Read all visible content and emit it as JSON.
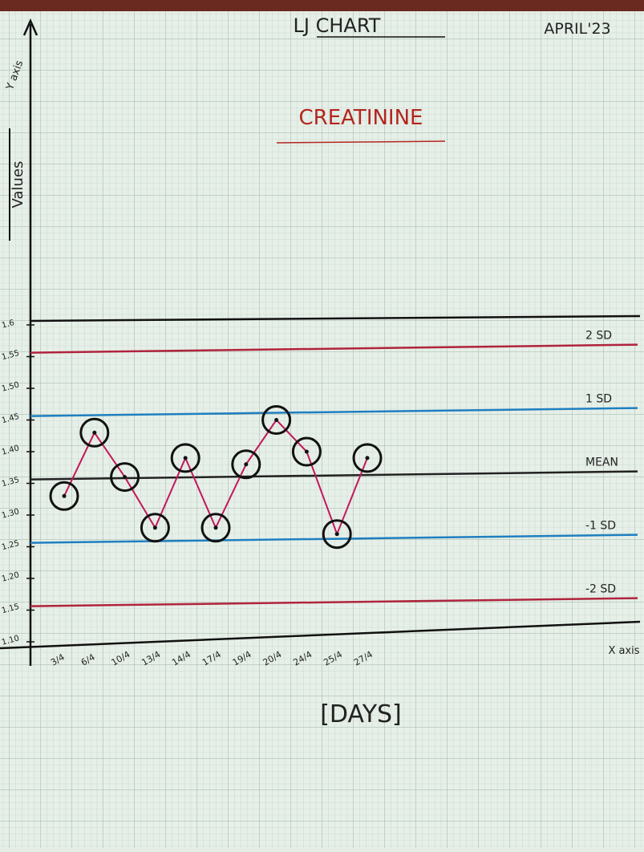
{
  "chart_data": {
    "type": "line",
    "title": "LJ CHART",
    "date": "APRIL'23",
    "subtitle": "CREATININE",
    "ylabel": "Values",
    "ylabel_axis": "Y axis",
    "xlabel": "[DAYS]",
    "xlabel_axis": "X axis",
    "categories": [
      "3/4",
      "6/4",
      "10/4",
      "13/4",
      "14/4",
      "17/4",
      "19/4",
      "20/4",
      "24/4",
      "25/4",
      "27/4"
    ],
    "series": [
      {
        "color": "#c2185b",
        "values": [
          1.33,
          1.43,
          1.36,
          1.28,
          1.39,
          1.28,
          1.38,
          1.45,
          1.4,
          1.27,
          1.39
        ]
      }
    ],
    "reference_lines": [
      {
        "label": "2 SD",
        "value": 1.56,
        "color": "#b0243c"
      },
      {
        "label": "1 SD",
        "value": 1.46,
        "color": "#1f7fc0"
      },
      {
        "label": "MEAN",
        "value": 1.36,
        "color": "#222222"
      },
      {
        "label": "-1 SD",
        "value": 1.26,
        "color": "#1f7fc0"
      },
      {
        "label": "-2 SD",
        "value": 1.16,
        "color": "#b0243c"
      }
    ],
    "ylim": [
      1.1,
      1.6
    ],
    "yticks": [
      1.6,
      1.55,
      {
        "value": 1.5,
        "label": "1.50"
      },
      1.45,
      {
        "value": 1.4,
        "label": "1.40"
      },
      1.35,
      {
        "value": 1.3,
        "label": "1.30"
      },
      1.25,
      {
        "value": 1.2,
        "label": "1.20"
      },
      1.15,
      {
        "value": 1.1,
        "label": "1.10"
      }
    ]
  }
}
